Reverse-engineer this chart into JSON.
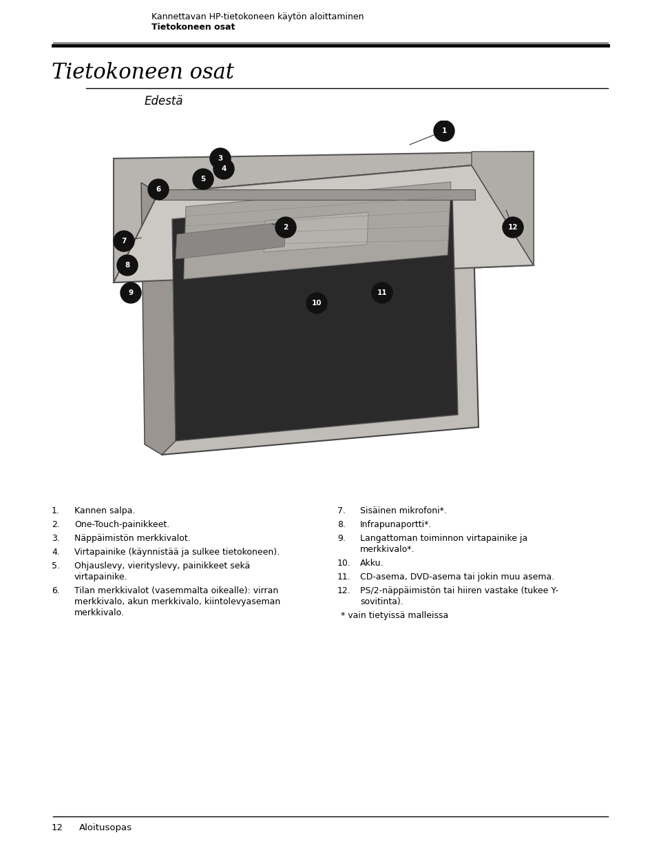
{
  "bg_color": "#ffffff",
  "page_width": 9.6,
  "page_height": 12.25,
  "header_line1": "Kannettavan HP-tietokoneen käytön aloittaminen",
  "header_line2": "Tietokoneen osat",
  "section_title": "Tietokoneen osat",
  "subsection_title": "Edestä",
  "footer_page": "12",
  "footer_text": "Aloitusopas",
  "left_items": [
    {
      "num": "1.",
      "text": "Kannen salpa."
    },
    {
      "num": "2.",
      "text": "One-Touch-painikkeet."
    },
    {
      "num": "3.",
      "text": "Näppäimistön merkkivalot."
    },
    {
      "num": "4.",
      "text": "Virtapainike (käynnistää ja sulkee tietokoneen)."
    },
    {
      "num": "5.",
      "text": "Ohjauslevy, vierityslevy, painikkeet sekä\nvirtapainike."
    },
    {
      "num": "6.",
      "text": "Tilan merkkivalot (vasemmalta oikealle): virran\nmerkkivalo, akun merkkivalo, kiintolevyaseman\nmerkkivalo."
    }
  ],
  "right_items": [
    {
      "num": "7.",
      "text": "Sisäinen mikrofoni*."
    },
    {
      "num": "8.",
      "text": "Infrapunaportti*."
    },
    {
      "num": "9.",
      "text": "Langattoman toiminnon virtapainike ja\nmerkkivalo*."
    },
    {
      "num": "10.",
      "text": "Akku."
    },
    {
      "num": "11.",
      "text": "CD-asema, DVD-asema tai jokin muu asema."
    },
    {
      "num": "12.",
      "text": "PS/2-näppäimistön tai hiiren vastake (tukee Y-\nsovitinta)."
    },
    {
      "num": "*",
      "text": "vain tietyissä malleissa",
      "italic": false
    }
  ]
}
